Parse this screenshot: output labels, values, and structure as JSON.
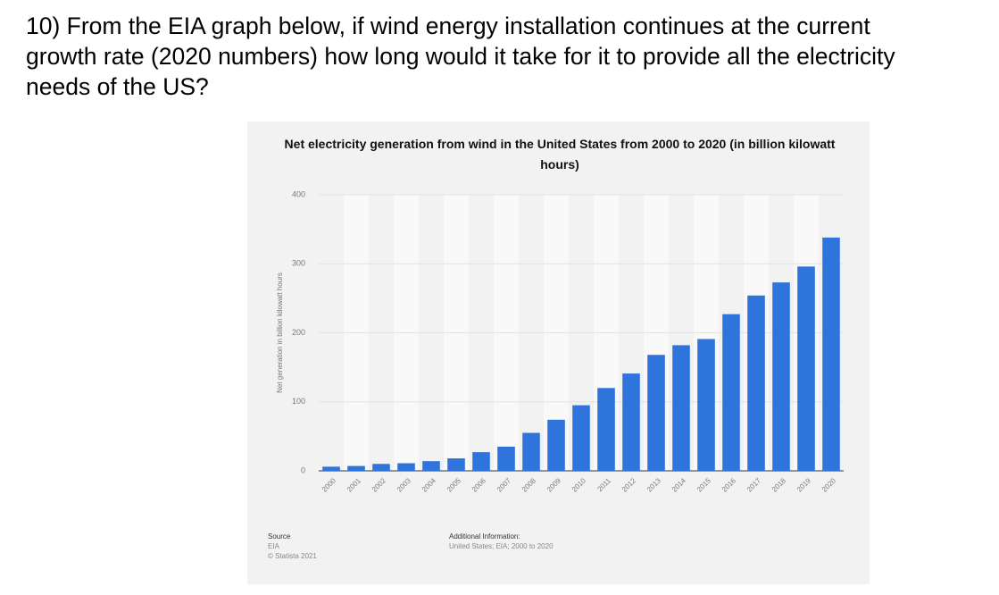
{
  "question": {
    "lines": [
      "10) From the EIA graph below, if wind energy installation continues at the current",
      "growth rate (2020 numbers) how long would it take for it to provide all the electricity",
      "needs of the US?"
    ]
  },
  "chart_data": {
    "type": "bar",
    "title": "Net electricity generation from wind in the United States from 2000 to 2020 (in billion kilowatt hours)",
    "y_label": "Net generation in billion kilowatt hours",
    "categories": [
      "2000",
      "2001",
      "2002",
      "2003",
      "2004",
      "2005",
      "2006",
      "2007",
      "2008",
      "2009",
      "2010",
      "2011",
      "2012",
      "2013",
      "2014",
      "2015",
      "2016",
      "2017",
      "2018",
      "2019",
      "2020"
    ],
    "values": [
      6,
      7,
      10,
      11,
      14,
      18,
      27,
      35,
      55,
      74,
      95,
      120,
      141,
      168,
      182,
      191,
      227,
      254,
      273,
      296,
      338
    ],
    "color": "#2f74db",
    "ylim": [
      0,
      400
    ],
    "yticks": [
      0,
      100,
      200,
      300,
      400
    ],
    "grid": true
  },
  "footer": {
    "source_title": "Source",
    "source": "EIA",
    "copyright": "© Statista 2021",
    "info_title": "Additional Information:",
    "info": "United States; EIA; 2000 to 2020"
  }
}
